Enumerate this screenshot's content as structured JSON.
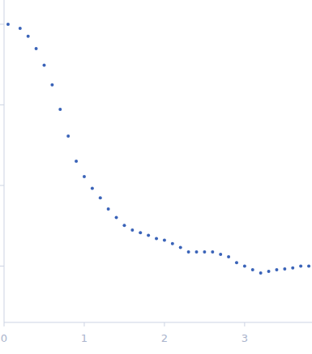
{
  "chart_data": {
    "type": "scatter",
    "log": "y",
    "color": "#3a63b8",
    "marker": "circle",
    "tick_labels": "x",
    "xlim": [
      0,
      3.84
    ],
    "ylim": [
      0.0002,
      2
    ],
    "xticks": [
      0,
      1,
      2,
      3
    ],
    "yticks": [
      0.001,
      0.01,
      0.1,
      1
    ],
    "x": [
      0.05,
      0.2,
      0.3,
      0.4,
      0.5,
      0.6,
      0.7,
      0.8,
      0.9,
      1.0,
      1.1,
      1.2,
      1.3,
      1.4,
      1.5,
      1.6,
      1.7,
      1.8,
      1.9,
      2.0,
      2.1,
      2.2,
      2.3,
      2.4,
      2.5,
      2.6,
      2.7,
      2.8,
      2.9,
      3.0,
      3.1,
      3.2,
      3.3,
      3.4,
      3.5,
      3.6,
      3.7,
      3.8
    ],
    "values": [
      1.0,
      0.89,
      0.71,
      0.5,
      0.31,
      0.177,
      0.088,
      0.041,
      0.02,
      0.0129,
      0.0092,
      0.007,
      0.0051,
      0.004,
      0.0032,
      0.0028,
      0.0026,
      0.0024,
      0.0022,
      0.0021,
      0.0019,
      0.0017,
      0.0015,
      0.0015,
      0.0015,
      0.0015,
      0.0014,
      0.0013,
      0.0011,
      0.001,
      0.0009,
      0.00082,
      0.00086,
      0.0009,
      0.00092,
      0.00095,
      0.001,
      0.001
    ]
  }
}
